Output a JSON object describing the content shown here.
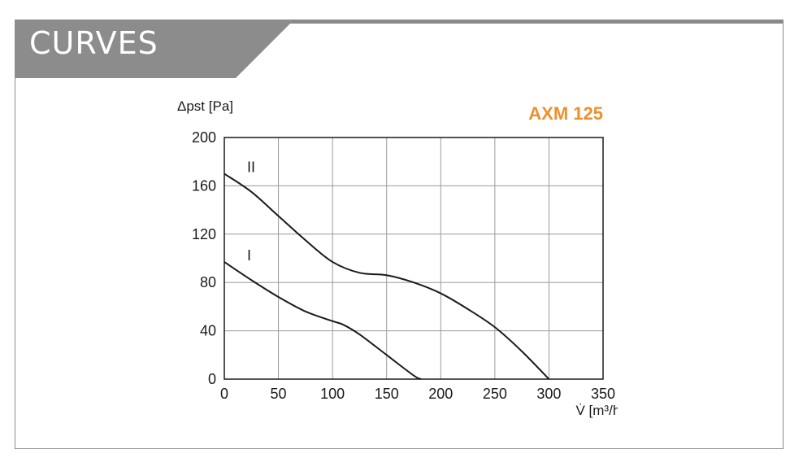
{
  "section": {
    "title": "CURVES"
  },
  "colors": {
    "frame": "#8a8a8a",
    "tab": "#8c8c8c",
    "model": "#ee8f2c",
    "grid": "#9a9a9a",
    "curve": "#1a1a1a"
  },
  "chart_data": {
    "type": "line",
    "title": "AXM 125",
    "ylabel": "Δpst [Pa]",
    "xlabel": "V̇ [m³/h]",
    "xlim": [
      0,
      350
    ],
    "ylim": [
      0,
      200
    ],
    "x_ticks": [
      "0",
      "50",
      "100",
      "150",
      "200",
      "250",
      "300",
      "350"
    ],
    "y_ticks": [
      "0",
      "40",
      "80",
      "120",
      "160",
      "200"
    ],
    "grid": true,
    "series": [
      {
        "name": "I",
        "x": [
          0,
          25,
          50,
          75,
          100,
          110,
          125,
          150,
          175,
          182
        ],
        "y": [
          97,
          82,
          68,
          56,
          48,
          45,
          37,
          20,
          3,
          0
        ]
      },
      {
        "name": "II",
        "x": [
          0,
          25,
          50,
          75,
          100,
          125,
          150,
          175,
          200,
          225,
          250,
          275,
          300
        ],
        "y": [
          170,
          155,
          135,
          115,
          97,
          88,
          86,
          80,
          71,
          58,
          43,
          23,
          0
        ]
      }
    ]
  }
}
